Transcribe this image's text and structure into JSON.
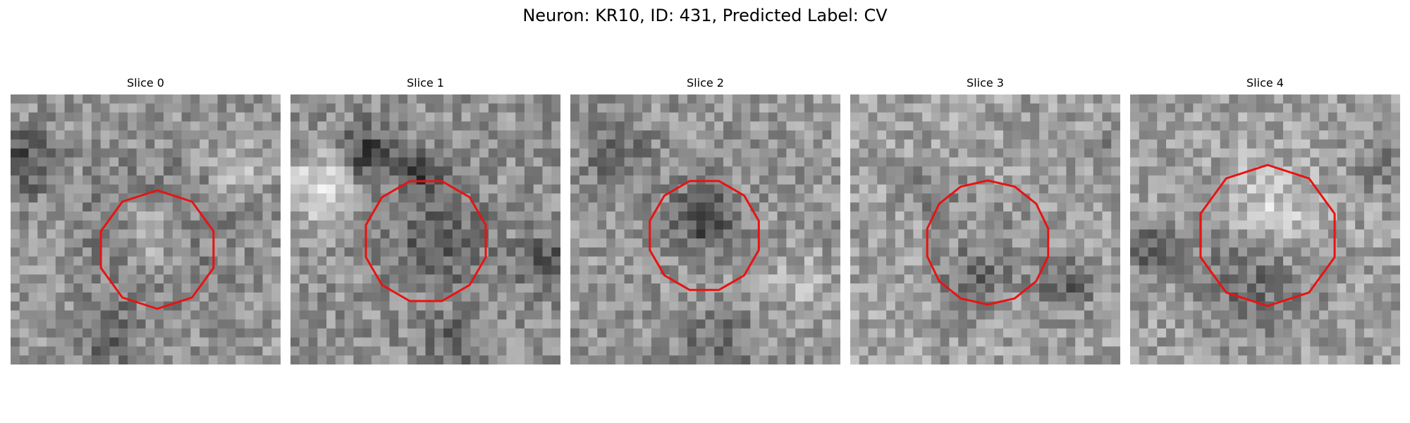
{
  "figure": {
    "title": "Neuron: KR10, ID: 431, Predicted Label: CV"
  },
  "colors": {
    "contour": "#e81313",
    "background": "#ffffff"
  },
  "panels": [
    {
      "title": "Slice 0"
    },
    {
      "title": "Slice 1"
    },
    {
      "title": "Slice 2"
    },
    {
      "title": "Slice 3"
    },
    {
      "title": "Slice 4"
    }
  ]
}
